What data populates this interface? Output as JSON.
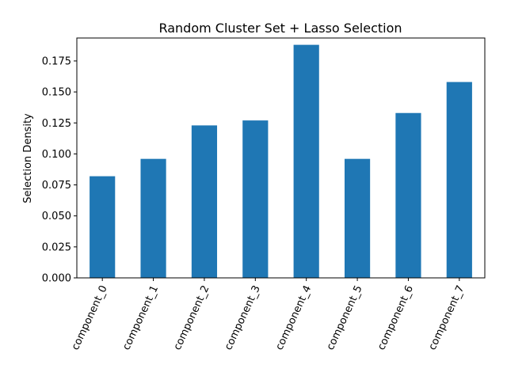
{
  "chart_data": {
    "type": "bar",
    "title": "Random Cluster Set + Lasso Selection",
    "xlabel": "",
    "ylabel": "Selection Density",
    "categories": [
      "component_0",
      "component_1",
      "component_2",
      "component_3",
      "component_4",
      "component_5",
      "component_6",
      "component_7"
    ],
    "values": [
      0.082,
      0.096,
      0.123,
      0.127,
      0.188,
      0.096,
      0.133,
      0.158
    ],
    "ylim": [
      0,
      0.1935
    ],
    "yticks": [
      0.0,
      0.025,
      0.05,
      0.075,
      0.1,
      0.125,
      0.15,
      0.175
    ],
    "ytick_labels": [
      "0.000",
      "0.025",
      "0.050",
      "0.075",
      "0.100",
      "0.125",
      "0.150",
      "0.175"
    ],
    "bar_color": "#1f77b4",
    "grid": false,
    "legend": "none"
  }
}
